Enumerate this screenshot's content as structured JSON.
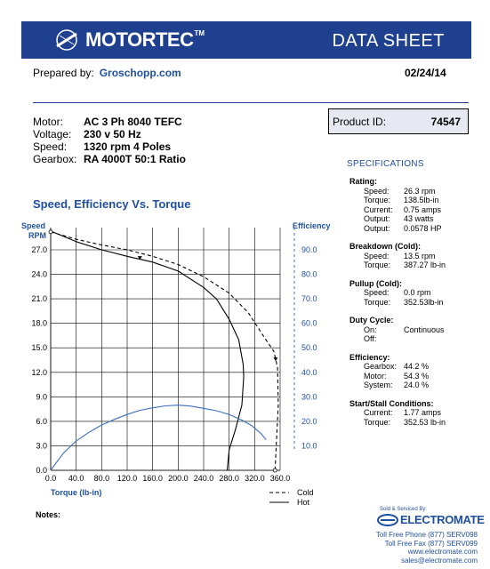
{
  "header": {
    "brand": "MOTORTEC",
    "trademark": "TM",
    "title": "DATA SHEET",
    "brand_color": "#1f3f8f"
  },
  "prepared": {
    "label": "Prepared by:",
    "value": "Groschopp.com",
    "date": "02/24/14"
  },
  "motor": [
    {
      "label": "Motor:",
      "value": "AC 3 Ph  8040 TEFC"
    },
    {
      "label": "Voltage:",
      "value": "230 v 50 Hz"
    },
    {
      "label": "Speed:",
      "value": "1320 rpm   4 Poles"
    },
    {
      "label": "Gearbox:",
      "value": "RA 4000T    50:1 Ratio"
    }
  ],
  "product": {
    "label": "Product ID:",
    "value": "74547"
  },
  "specifications": {
    "title": "SPECIFICATIONS",
    "groups": [
      {
        "title": "Rating:",
        "rows": [
          {
            "k": "Speed:",
            "v": "26.3 rpm"
          },
          {
            "k": "Torque:",
            "v": "138.5lb-in"
          },
          {
            "k": "Current:",
            "v": "0.75 amps"
          },
          {
            "k": "Output:",
            "v": "43 watts"
          },
          {
            "k": "Output:",
            "v": "0.0578 HP"
          }
        ]
      },
      {
        "title": "Breakdown (Cold):",
        "rows": [
          {
            "k": "Speed:",
            "v": "13.5 rpm"
          },
          {
            "k": "Torque:",
            "v": "387.27 lb-in"
          }
        ]
      },
      {
        "title": "Pullup (Cold):",
        "rows": [
          {
            "k": "Speed:",
            "v": "0.0 rpm"
          },
          {
            "k": "Torque:",
            "v": "352.53lb-in"
          }
        ]
      },
      {
        "title": "Duty Cycle:",
        "rows": [
          {
            "k": "On:",
            "v": "Continuous"
          },
          {
            "k": "Off:",
            "v": ""
          }
        ]
      },
      {
        "title": "Efficiency:",
        "rows": [
          {
            "k": "Gearbox:",
            "v": "44.2 %"
          },
          {
            "k": "Motor:",
            "v": "54.3 %"
          },
          {
            "k": "System:",
            "v": "24.0 %"
          }
        ]
      },
      {
        "title": "Start/Stall Conditions:",
        "rows": [
          {
            "k": "Current:",
            "v": "1.77 amps"
          },
          {
            "k": "Torque:",
            "v": "352.53 lb-in"
          }
        ]
      }
    ]
  },
  "notes": {
    "label": "Notes:"
  },
  "distributor": {
    "sold_by": "Sold & Serviced By:",
    "name": "ELECTROMATE",
    "lines": [
      "Toll Free Phone  (877) SERV098",
      "Toll Free Fax  (877) SERV099",
      "www.electromate.com",
      "sales@electromate.com"
    ]
  },
  "chart_data": {
    "type": "line",
    "title": "Speed, Efficiency Vs. Torque",
    "xlabel": "Torque  (lb-in)",
    "ylabel_left": [
      "Speed",
      "RPM"
    ],
    "ylabel_right": "Efficiency",
    "xlim": [
      0,
      360
    ],
    "ylim_left": [
      0,
      27
    ],
    "ylim_right": [
      0,
      90
    ],
    "x_ticks": [
      "0.0",
      "40.0",
      "80.0",
      "120.0",
      "160.0",
      "200.0",
      "240.0",
      "280.0",
      "320.0",
      "360.0"
    ],
    "y_left_ticks": [
      "0.0",
      "3.0",
      "6.0",
      "9.0",
      "12.0",
      "15.0",
      "18.0",
      "21.0",
      "24.0",
      "27.0"
    ],
    "y_right_ticks": [
      "10.0",
      "20.0",
      "30.0",
      "40.0",
      "50.0",
      "60.0",
      "70.0",
      "80.0",
      "90.0"
    ],
    "grid": true,
    "legend_position": "bottom-right",
    "legend": [
      {
        "name": "Cold",
        "style": "dashed"
      },
      {
        "name": "Hot",
        "style": "solid"
      }
    ],
    "series": [
      {
        "name": "Cold",
        "axis": "left",
        "color": "#000000",
        "style": "dashed",
        "points": [
          [
            0,
            29.2
          ],
          [
            40,
            28.3
          ],
          [
            80,
            27.6
          ],
          [
            120,
            27.0
          ],
          [
            160,
            26.2
          ],
          [
            200,
            25.2
          ],
          [
            240,
            23.7
          ],
          [
            280,
            21.7
          ],
          [
            310,
            19.3
          ],
          [
            335,
            16.3
          ],
          [
            350,
            14.6
          ],
          [
            356,
            12.6
          ],
          [
            357,
            8.0
          ],
          [
            352,
            0
          ]
        ]
      },
      {
        "name": "Hot",
        "axis": "left",
        "color": "#000000",
        "style": "solid",
        "points": [
          [
            0,
            29.3
          ],
          [
            40,
            28.0
          ],
          [
            80,
            27.0
          ],
          [
            120,
            26.2
          ],
          [
            160,
            25.5
          ],
          [
            200,
            24.4
          ],
          [
            240,
            22.4
          ],
          [
            260,
            21.0
          ],
          [
            280,
            18.5
          ],
          [
            295,
            16.0
          ],
          [
            302,
            13.0
          ],
          [
            303,
            11.5
          ],
          [
            300,
            8.0
          ],
          [
            290,
            5.0
          ],
          [
            280,
            2.5
          ],
          [
            277,
            0
          ]
        ]
      },
      {
        "name": "",
        "axis": "right",
        "color": "#3a6fc0",
        "style": "solid",
        "points": [
          [
            0,
            0
          ],
          [
            20,
            7
          ],
          [
            40,
            12
          ],
          [
            60,
            15.5
          ],
          [
            80,
            18.5
          ],
          [
            100,
            20.8
          ],
          [
            120,
            22.8
          ],
          [
            140,
            24.5
          ],
          [
            160,
            25.5
          ],
          [
            180,
            26.3
          ],
          [
            200,
            26.6
          ],
          [
            220,
            26.2
          ],
          [
            240,
            25.3
          ],
          [
            260,
            24.3
          ],
          [
            280,
            22.8
          ],
          [
            300,
            20.5
          ],
          [
            315,
            18.3
          ],
          [
            330,
            15.0
          ],
          [
            338,
            12.5
          ]
        ]
      }
    ],
    "markers": [
      {
        "x": 140,
        "y": 26.0
      },
      {
        "x": 353,
        "y": 13.6
      }
    ],
    "colors": {
      "axis_labels": "#1f4fa0",
      "efficiency": "#3a6fc0"
    }
  }
}
